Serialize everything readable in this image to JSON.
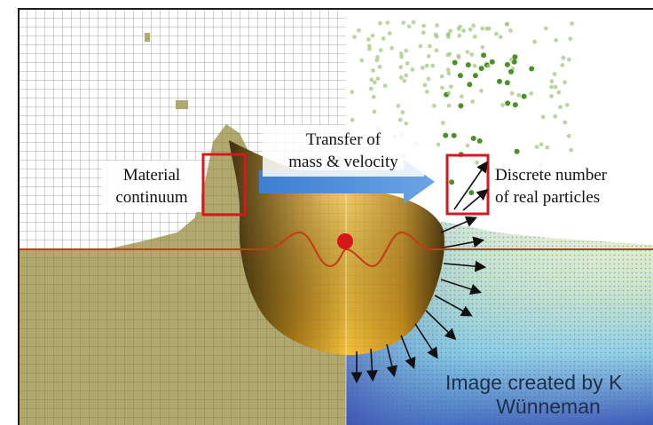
{
  "labels": {
    "continuum_line1": "Material",
    "continuum_line2": "continuum",
    "transfer_line1": "Transfer of",
    "transfer_line2": "mass & velocity",
    "discrete_line1": "Discrete number",
    "discrete_line2": "of real particles"
  },
  "credit": {
    "line1": "Image created by K",
    "line2": "Wünneman"
  },
  "colors": {
    "ground_left": "#b1a86e",
    "mesh_line": "#8b8b8b",
    "crater_gold": "#d79b1f",
    "highlight_box": "#d8181c",
    "arrow_blue": "#4f8bd6",
    "particle_green": "#3f8b1c",
    "surface_line": "#c63a14"
  }
}
